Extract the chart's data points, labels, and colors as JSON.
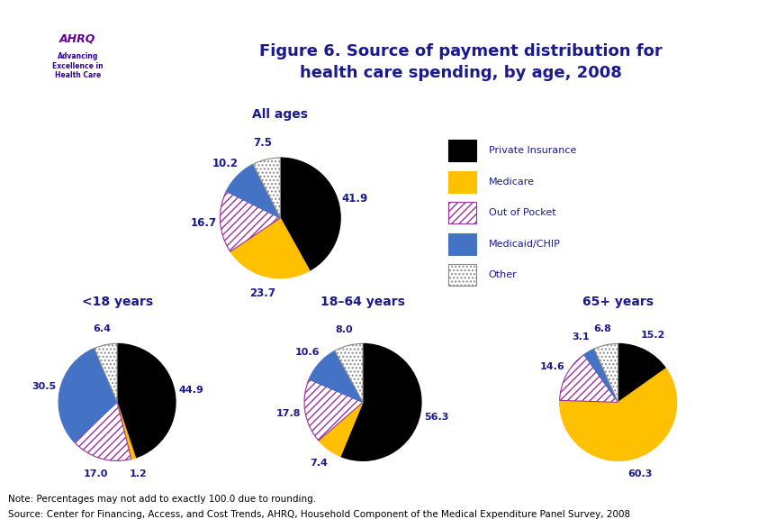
{
  "title": "Figure 6. Source of payment distribution for\nhealth care spending, by age, 2008",
  "title_color": "#1a1a8c",
  "background_color": "#ffffff",
  "header_bar_color": "#1a3a8c",
  "categories": [
    "Private Insurance",
    "Medicare",
    "Out of Pocket",
    "Medicaid/CHIP",
    "Other"
  ],
  "colors": [
    "#000000",
    "#ffc000",
    "#ffffff",
    "#4472c4",
    "#ffffff"
  ],
  "hatch_patterns": [
    "",
    "",
    "////",
    "",
    "...."
  ],
  "hatch_edge_colors": [
    "#000000",
    "#ffc000",
    "#993399",
    "#4472c4",
    "#888888"
  ],
  "all_ages": {
    "title": "All ages",
    "values": [
      41.9,
      23.7,
      16.7,
      10.2,
      7.5
    ],
    "labels": [
      "41.9",
      "23.7",
      "16.7",
      "10.2",
      "7.5"
    ]
  },
  "under18": {
    "title": "<18 years",
    "values": [
      44.9,
      1.2,
      17.0,
      30.5,
      6.4
    ],
    "labels": [
      "44.9",
      "1.2",
      "17.0",
      "30.5",
      "6.4"
    ]
  },
  "age18_64": {
    "title": "18–64 years",
    "values": [
      56.3,
      7.4,
      17.8,
      10.6,
      8.0
    ],
    "labels": [
      "56.3",
      "7.4",
      "17.8",
      "10.6",
      "8.0"
    ]
  },
  "age65plus": {
    "title": "65+ years",
    "values": [
      15.2,
      60.3,
      14.6,
      3.1,
      6.8
    ],
    "labels": [
      "15.2",
      "60.3",
      "14.6",
      "3.1",
      "6.8"
    ]
  },
  "note": "Note: Percentages may not add to exactly 100.0 due to rounding.",
  "source": "Source: Center for Financing, Access, and Cost Trends, AHRQ, Household Component of the Medical Expenditure Panel Survey, 2008",
  "label_color": "#1a1a8c",
  "legend_items": [
    {
      "label": "Private Insurance",
      "facecolor": "#000000",
      "hatch": null,
      "edgecolor": "#000000"
    },
    {
      "label": "Medicare",
      "facecolor": "#ffc000",
      "hatch": null,
      "edgecolor": "#ffc000"
    },
    {
      "label": "Out of Pocket",
      "facecolor": "#ffffff",
      "hatch": "////",
      "edgecolor": "#993399"
    },
    {
      "label": "Medicaid/CHIP",
      "facecolor": "#4472c4",
      "hatch": "////",
      "edgecolor": "#4472c4"
    },
    {
      "label": "Other",
      "facecolor": "#ffffff",
      "hatch": "....",
      "edgecolor": "#888888"
    }
  ]
}
